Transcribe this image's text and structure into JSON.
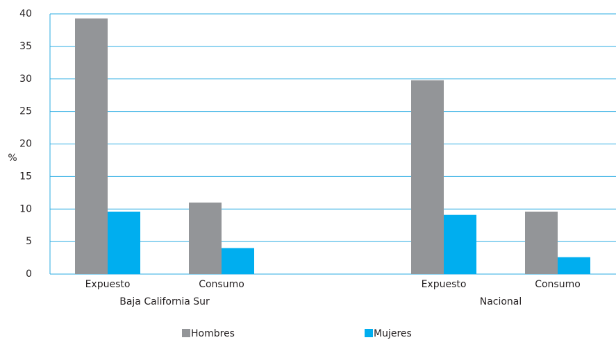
{
  "chart_data": {
    "type": "bar",
    "y_label": "%",
    "groups": [
      {
        "name": "Baja California Sur",
        "categories": [
          "Expuesto",
          "Consumo"
        ]
      },
      {
        "name": "Nacional",
        "categories": [
          "Expuesto",
          "Consumo"
        ]
      }
    ],
    "series": [
      {
        "name": "Hombres",
        "color": "#939598",
        "values": [
          39.3,
          11,
          29.8,
          9.6
        ]
      },
      {
        "name": "Mujeres",
        "color": "#00aeef",
        "values": [
          9.6,
          4,
          9.1,
          2.6
        ]
      }
    ],
    "ylim": [
      0,
      40
    ],
    "yticks": [
      0,
      5,
      10,
      15,
      20,
      25,
      30,
      35,
      40
    ],
    "grid": true
  }
}
